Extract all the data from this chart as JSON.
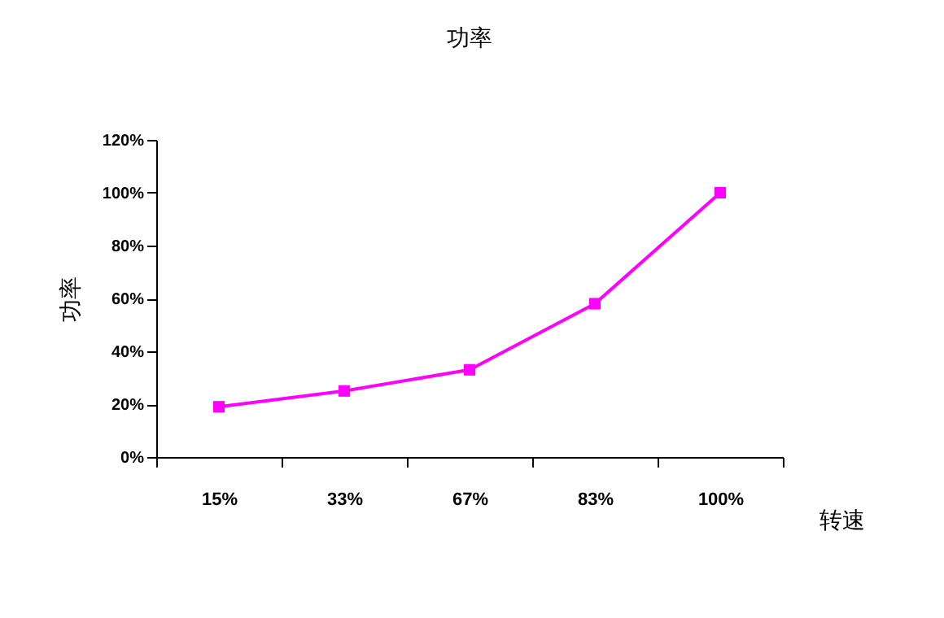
{
  "chart_data": {
    "type": "line",
    "title": "功率",
    "xlabel": "转速",
    "ylabel": "功率",
    "categories": [
      "15%",
      "33%",
      "67%",
      "83%",
      "100%"
    ],
    "series": [
      {
        "color": "#ff00ff",
        "values": [
          19,
          25,
          33,
          58,
          100
        ]
      }
    ],
    "ylim": [
      0,
      120
    ],
    "yticks": [
      {
        "value": 0,
        "label": "0%"
      },
      {
        "value": 20,
        "label": "20%"
      },
      {
        "value": 40,
        "label": "40%"
      },
      {
        "value": 60,
        "label": "60%"
      },
      {
        "value": 80,
        "label": "80%"
      },
      {
        "value": 100,
        "label": "100%"
      },
      {
        "value": 120,
        "label": "120%"
      }
    ],
    "grid": false,
    "legend": false,
    "marker": "square",
    "line_style": "solid"
  }
}
